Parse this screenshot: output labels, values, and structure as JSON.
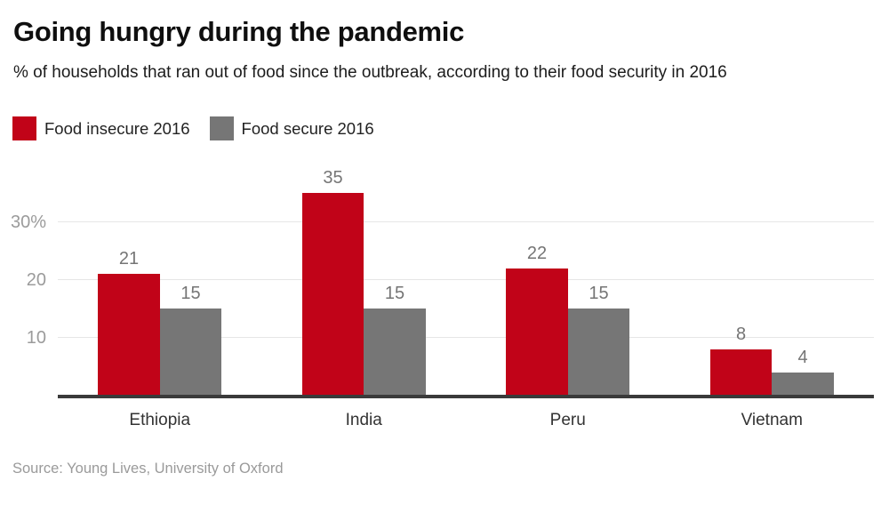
{
  "chart_data": {
    "type": "bar",
    "title": "Going hungry during the pandemic",
    "subtitle": "% of households that ran out of food since the outbreak, according to their food security in 2016",
    "categories": [
      "Ethiopia",
      "India",
      "Peru",
      "Vietnam"
    ],
    "series": [
      {
        "name": "Food insecure 2016",
        "color": "#c10318",
        "values": [
          21,
          35,
          22,
          8
        ]
      },
      {
        "name": "Food secure 2016",
        "color": "#767676",
        "values": [
          15,
          15,
          15,
          4
        ]
      }
    ],
    "y_ticks": [
      {
        "value": 10,
        "label": "10"
      },
      {
        "value": 20,
        "label": "20"
      },
      {
        "value": 30,
        "label": "30%"
      }
    ],
    "ylim": [
      0,
      39.2
    ],
    "grid": true,
    "legend_position": "top-left",
    "value_labels_shown": true,
    "source": "Source: Young Lives, University of Oxford",
    "colors": {
      "insecure_red": "#c10318",
      "secure_gray": "#767676",
      "gridline": "#e6e6e6",
      "axis_line": "#3a3a3a",
      "tick_text": "#9b9b9b",
      "value_text": "#757575",
      "category_text": "#333333"
    }
  }
}
